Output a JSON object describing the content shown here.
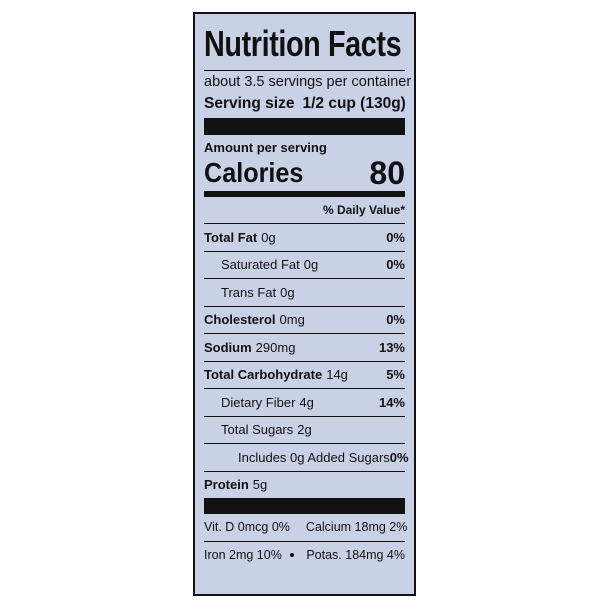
{
  "label": {
    "title": "Nutrition Facts",
    "servings": "about 3.5 servings per container",
    "serving_size": {
      "label": "Serving size",
      "value": "1/2 cup (130g)"
    },
    "amount_per_serving": "Amount per serving",
    "calories": {
      "label": "Calories",
      "value": "80"
    },
    "dv_header": "% Daily Value*",
    "rows": [
      {
        "name": "Total Fat",
        "amount": "0g",
        "dv": "0%",
        "bold": true,
        "indent": 0
      },
      {
        "name": "Saturated Fat",
        "amount": "0g",
        "dv": "0%",
        "bold": false,
        "indent": 1
      },
      {
        "name": "Trans Fat",
        "amount": "0g",
        "bold": false,
        "indent": 1
      },
      {
        "name": "Cholesterol",
        "amount": "0mg",
        "dv": "0%",
        "bold": true,
        "indent": 0
      },
      {
        "name": "Sodium",
        "amount": "290mg",
        "dv": "13%",
        "bold": true,
        "indent": 0
      },
      {
        "name": "Total Carbohydrate",
        "amount": "14g",
        "dv": "5%",
        "bold": true,
        "indent": 0
      },
      {
        "name": "Dietary Fiber",
        "amount": "4g",
        "dv": "14%",
        "bold": false,
        "indent": 1
      },
      {
        "name": "Total Sugars",
        "amount": "2g",
        "bold": false,
        "indent": 1
      },
      {
        "name": "Includes 0g Added Sugars",
        "dv": "0%",
        "bold": false,
        "indent": 2
      },
      {
        "name": "Protein",
        "amount": "5g",
        "bold": true,
        "indent": 0
      }
    ],
    "vitamins": [
      [
        "Vit. D 0mcg 0%",
        "Calcium 18mg 2%"
      ],
      [
        "Iron 2mg 10%",
        "Potas. 184mg 4%"
      ]
    ]
  }
}
